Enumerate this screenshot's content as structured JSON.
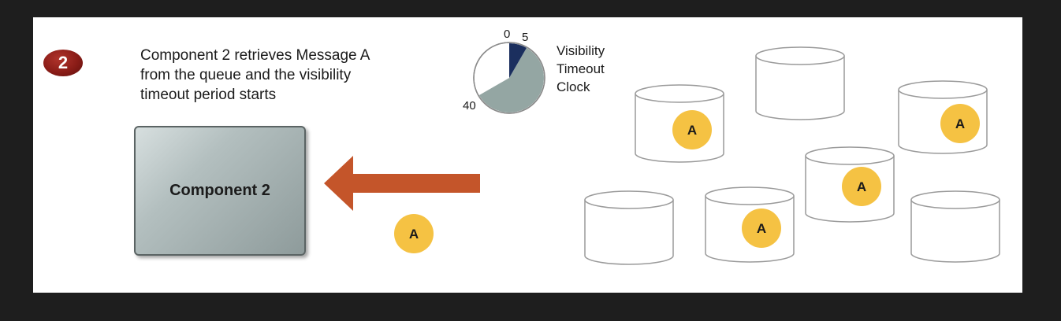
{
  "step": {
    "number": "2",
    "caption_lines": [
      "Component 2 retrieves Message A",
      "from the queue and the visibility",
      "timeout period starts"
    ]
  },
  "clock": {
    "label_lines": [
      "Visibility",
      "Timeout",
      "Clock"
    ],
    "tick_0": "0",
    "tick_5": "5",
    "tick_40": "40",
    "total_seconds": 60,
    "elapsed_seconds": 5,
    "timeout_seconds": 40,
    "colors": {
      "elapsed": "#1b2f5e",
      "timeout": "#94a6a3",
      "idle": "#ffffff"
    }
  },
  "component": {
    "label": "Component 2"
  },
  "arrow": {
    "direction": "left",
    "color": "#c4552a"
  },
  "message": {
    "label": "A",
    "color": "#f5c243"
  },
  "queue": {
    "servers": [
      {
        "id": "server-1",
        "message": "A"
      },
      {
        "id": "server-2",
        "message": ""
      },
      {
        "id": "server-3",
        "message": "A"
      },
      {
        "id": "server-4",
        "message": "A"
      },
      {
        "id": "server-5",
        "message": ""
      },
      {
        "id": "server-6",
        "message": "A"
      },
      {
        "id": "server-7",
        "message": ""
      }
    ]
  }
}
